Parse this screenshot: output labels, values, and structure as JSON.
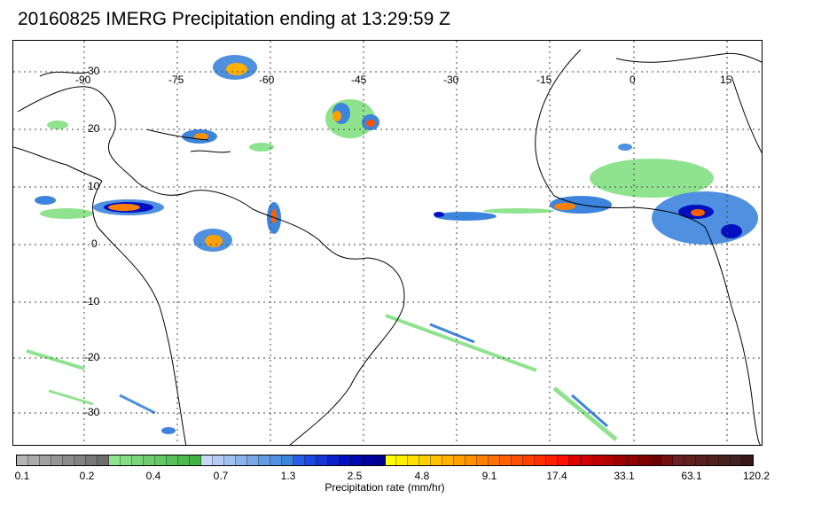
{
  "title": "20160825 IMERG Precipitation ending at 13:29:59 Z",
  "map": {
    "longitude_labels": [
      "-90",
      "-75",
      "-60",
      "-45",
      "-30",
      "-15",
      "0",
      "15"
    ],
    "latitude_labels": [
      "30",
      "20",
      "10",
      "0",
      "-10",
      "-20",
      "-30"
    ],
    "colors": {
      "land_outline": "#000000",
      "gridline": "#444444",
      "background": "#ffffff"
    }
  },
  "colorbar": {
    "title": "Precipitation rate (mm/hr)",
    "tick_labels": [
      "0.1",
      "0.2",
      "0.4",
      "0.7",
      "1.3",
      "2.5",
      "4.8",
      "9.1",
      "17.4",
      "33.1",
      "63.1",
      "120.2"
    ],
    "colors": [
      "#b4b4b4",
      "#aaaaaa",
      "#a0a0a0",
      "#969696",
      "#8c8c8c",
      "#828282",
      "#787878",
      "#6e6e6e",
      "#8fe38f",
      "#84dc84",
      "#79d579",
      "#6ece6e",
      "#63c763",
      "#58c058",
      "#4db94d",
      "#42b242",
      "#c8d8f8",
      "#b4ccf4",
      "#a0c0f0",
      "#8cb4ec",
      "#78a8e8",
      "#649ce4",
      "#5090e0",
      "#3c84dc",
      "#2a5ce8",
      "#1e48e0",
      "#1434d4",
      "#0a20c8",
      "#0010c0",
      "#0008b0",
      "#0000a0",
      "#000090",
      "#ffff00",
      "#fff000",
      "#ffe000",
      "#ffd000",
      "#ffc000",
      "#ffb000",
      "#ffa000",
      "#ff9000",
      "#ff8000",
      "#ff7000",
      "#ff6000",
      "#ff5000",
      "#ff4000",
      "#ff3000",
      "#ff2000",
      "#ff1000",
      "#e00000",
      "#d00000",
      "#c00000",
      "#b00000",
      "#a00000",
      "#900000",
      "#800000",
      "#700000",
      "#701010",
      "#682020",
      "#602020",
      "#582020",
      "#502020",
      "#482020",
      "#402020",
      "#381818"
    ]
  },
  "legend_colors": {
    "light": "#8fe38f",
    "moderate": "#5090e0",
    "heavy": "#0010c0",
    "intense": "#ffd000",
    "extreme": "#ff4000"
  }
}
